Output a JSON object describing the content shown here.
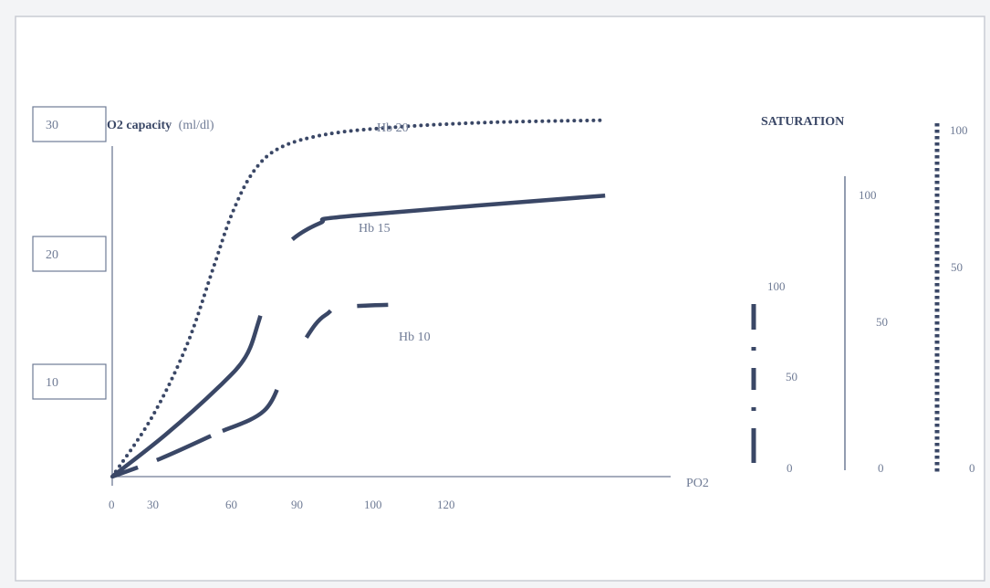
{
  "colors": {
    "ink": "#3a4766",
    "light_ink": "#6f7b95",
    "page": "#ffffff",
    "frame": "#c9ccd4"
  },
  "chart_data": {
    "type": "line",
    "ylabel_bold": "O2 capacity",
    "ylabel_units": "(ml/dl)",
    "xlabel": "PO2",
    "y_ticks": [
      "30",
      "20",
      "10"
    ],
    "x_tick_labels": [
      "0",
      "30",
      "60",
      "90",
      "100",
      "120"
    ],
    "series": [
      {
        "name": "Hb 20",
        "style": "dotted",
        "points": [
          [
            0,
            0
          ],
          [
            15,
            5
          ],
          [
            28,
            11
          ],
          [
            38,
            17.5
          ],
          [
            45,
            22
          ],
          [
            53,
            25.5
          ],
          [
            63,
            27.5
          ],
          [
            80,
            28.6
          ],
          [
            105,
            29.2
          ],
          [
            140,
            29.6
          ],
          [
            185,
            29.8
          ]
        ]
      },
      {
        "name": "Hb 15",
        "style": "solid",
        "points": [
          [
            0,
            0
          ],
          [
            20,
            3.5
          ],
          [
            40,
            7.5
          ],
          [
            50,
            10
          ],
          [
            55,
            13
          ],
          [
            60,
            17
          ],
          [
            66,
            19.5
          ],
          [
            78,
            21.2
          ],
          [
            90,
            21.8
          ],
          [
            185,
            23.5
          ]
        ]
      },
      {
        "name": "Hb 10",
        "style": "dashed",
        "points": [
          [
            0,
            0
          ],
          [
            18,
            1.5
          ],
          [
            38,
            3.5
          ],
          [
            57,
            5.5
          ],
          [
            65,
            9
          ],
          [
            71,
            11
          ],
          [
            80,
            13.5
          ],
          [
            95,
            14.3
          ],
          [
            173,
            14.5
          ]
        ]
      }
    ],
    "saturation_title": "SATURATION",
    "saturation_scales": [
      {
        "style": "dashdot",
        "labels": [
          "100",
          "50",
          "0"
        ]
      },
      {
        "style": "solid",
        "labels": [
          "100",
          "50",
          "0"
        ]
      },
      {
        "style": "dotted",
        "labels": [
          "100",
          "50",
          "0"
        ]
      }
    ]
  }
}
